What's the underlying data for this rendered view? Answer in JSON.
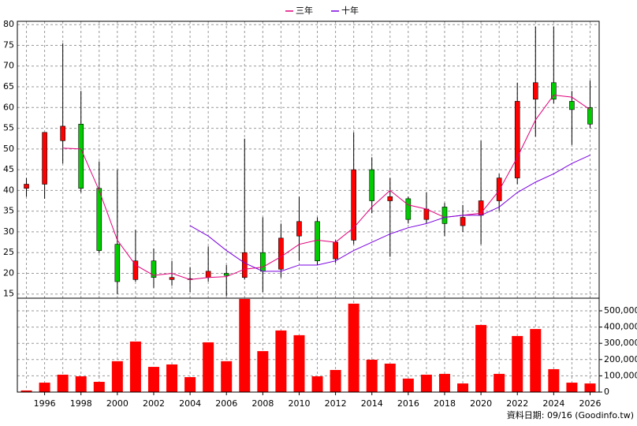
{
  "chart_data": [
    {
      "type": "candlestick",
      "categories": [
        null,
        "1996",
        null,
        "1998",
        null,
        "2000",
        null,
        "2002",
        null,
        "2004",
        null,
        "2006",
        null,
        "2008",
        null,
        "2010",
        null,
        "2012",
        null,
        "2014",
        null,
        "2016",
        null,
        "2018",
        null,
        "2020",
        null,
        "2022",
        null,
        "2024",
        null,
        "2026"
      ],
      "open": [
        40.5,
        41.5,
        52,
        56,
        40.5,
        27,
        18.5,
        23,
        18.5,
        18.5,
        19,
        20,
        19,
        25,
        21,
        29,
        32.5,
        23.5,
        28,
        45,
        37.5,
        38,
        33,
        36,
        31.5,
        34,
        37.5,
        43,
        62,
        66,
        61.5,
        60
      ],
      "high": [
        43,
        54,
        75.5,
        64,
        47,
        45,
        30.5,
        26,
        23,
        21.5,
        26.5,
        22,
        52.5,
        33.5,
        32,
        38.5,
        33.5,
        28,
        54,
        48,
        43,
        38.5,
        39.5,
        37,
        36.5,
        52,
        44,
        66,
        79.5,
        79.5,
        64,
        66.5
      ],
      "low": [
        38.5,
        38,
        46.5,
        39.5,
        25,
        15,
        18,
        16.5,
        17,
        15.5,
        18,
        14.5,
        18.5,
        15.5,
        19,
        23,
        22,
        22.5,
        27,
        34.5,
        24,
        32,
        32,
        29,
        30,
        27,
        35,
        41.5,
        53,
        61,
        51,
        55
      ],
      "close": [
        41.5,
        54,
        55.5,
        40.5,
        25.5,
        18,
        23,
        19,
        19,
        18.7,
        20.5,
        19.5,
        25,
        20.5,
        28.5,
        32.5,
        23,
        27.5,
        45,
        37.5,
        38.5,
        33,
        35.5,
        32,
        33.5,
        37.5,
        43,
        61.5,
        66,
        62,
        59.5,
        56
      ],
      "up_color": "#ff0000",
      "down_color": "#00cc00",
      "series": [
        {
          "name": "三年",
          "color": "#e0007a",
          "values": [
            null,
            null,
            50.2,
            50,
            40,
            28,
            22,
            19.5,
            20,
            18.5,
            19,
            19.2,
            21,
            21.5,
            24,
            27,
            28,
            27.5,
            31,
            36,
            40,
            36.5,
            35.5,
            33.5,
            34,
            34.5,
            40,
            48,
            57,
            63,
            62.5,
            59.5
          ]
        },
        {
          "name": "十年",
          "color": "#7a00e0",
          "values": [
            null,
            null,
            null,
            null,
            null,
            null,
            null,
            null,
            null,
            31.5,
            29,
            25.5,
            22.5,
            20.5,
            20.5,
            22,
            22,
            23,
            25.5,
            27.5,
            29.5,
            31,
            32,
            33.5,
            34,
            34,
            36,
            39.5,
            42,
            44,
            46.5,
            48.5
          ]
        }
      ],
      "ylim": [
        14,
        80.8
      ],
      "yticks": [
        15,
        20,
        25,
        30,
        35,
        40,
        45,
        50,
        55,
        60,
        65,
        70,
        75,
        80
      ],
      "grid": true,
      "footer": "資料日期: 09/16 (Goodinfo.tw)"
    },
    {
      "type": "bar",
      "color": "#ff0000",
      "values": [
        10000,
        58000,
        107000,
        97000,
        63000,
        190000,
        311000,
        155000,
        170000,
        92000,
        306000,
        190000,
        573000,
        252000,
        379000,
        350000,
        97000,
        136000,
        544000,
        199000,
        175000,
        83000,
        107000,
        112000,
        53000,
        413000,
        112000,
        345000,
        388000,
        141000,
        58000,
        53000
      ],
      "ylim": [
        0,
        577600
      ],
      "yticks": [
        0,
        {
          "value": 100000,
          "label": "100,000"
        },
        {
          "value": 200000,
          "label": "200,000"
        },
        {
          "value": 300000,
          "label": "300,000"
        },
        {
          "value": 400000,
          "label": "400,000"
        },
        {
          "value": 500000,
          "label": "500,000"
        }
      ],
      "grid": true
    }
  ]
}
